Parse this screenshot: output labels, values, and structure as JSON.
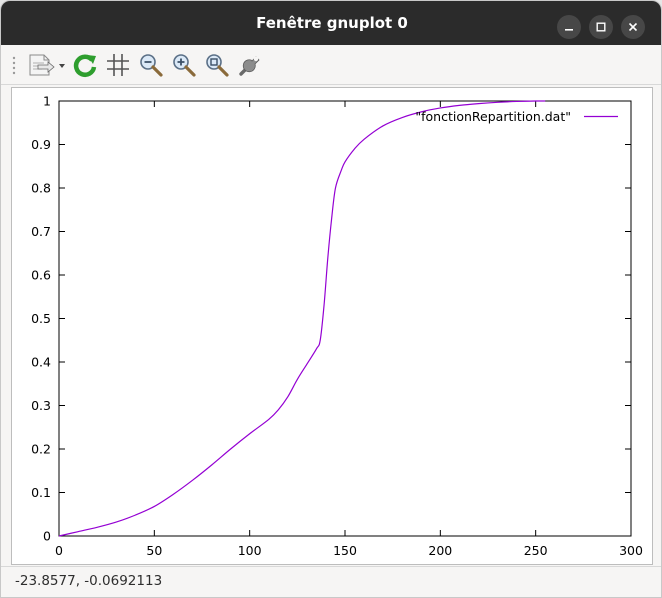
{
  "window": {
    "title": "Fenêtre gnuplot 0"
  },
  "toolbar": {
    "tools": [
      "export-icon",
      "replot-icon",
      "grid-icon",
      "zoom-out-icon",
      "zoom-in-icon",
      "zoom-reset-icon",
      "settings-icon"
    ]
  },
  "status": {
    "coordinates": "-23.8577, -0.0692113"
  },
  "colors": {
    "series": "#9400d3",
    "replot_green": "#2e9e2e"
  },
  "chart_data": {
    "type": "line",
    "title": "",
    "xlabel": "",
    "ylabel": "",
    "xlim": [
      0,
      300
    ],
    "ylim": [
      0,
      1
    ],
    "xticks": [
      "0",
      "50",
      "100",
      "150",
      "200",
      "250",
      "300"
    ],
    "yticks": [
      "0",
      "0.1",
      "0.2",
      "0.3",
      "0.4",
      "0.5",
      "0.6",
      "0.7",
      "0.8",
      "0.9",
      "1"
    ],
    "legend_position": "top-right",
    "grid": false,
    "series": [
      {
        "name": "\"fonctionRepartition.dat\"",
        "x": [
          0,
          10,
          20,
          30,
          40,
          50,
          60,
          70,
          80,
          90,
          100,
          110,
          115,
          120,
          125,
          130,
          135,
          137,
          139,
          141,
          143,
          145,
          148,
          150,
          155,
          160,
          170,
          180,
          190,
          200,
          210,
          220,
          230,
          240,
          250,
          255
        ],
        "y": [
          0,
          0.01,
          0.02,
          0.032,
          0.048,
          0.068,
          0.096,
          0.128,
          0.163,
          0.2,
          0.235,
          0.268,
          0.29,
          0.32,
          0.36,
          0.395,
          0.43,
          0.45,
          0.53,
          0.64,
          0.73,
          0.8,
          0.84,
          0.86,
          0.89,
          0.912,
          0.943,
          0.962,
          0.975,
          0.984,
          0.99,
          0.994,
          0.997,
          0.999,
          1.0,
          1.0
        ]
      }
    ]
  }
}
